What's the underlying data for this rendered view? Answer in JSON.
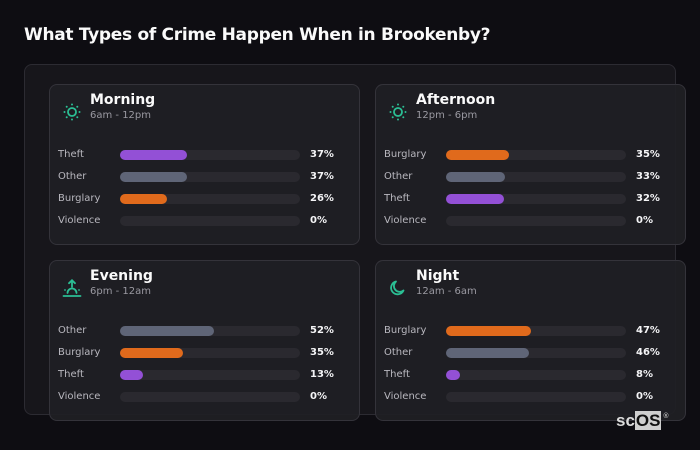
{
  "title": "What Types of Crime Happen When in Brookenby?",
  "colors": {
    "theft": "#9350d6",
    "other": "#5f6577",
    "burglary": "#e06a1c",
    "violence": "#c0392b",
    "accent_icon": "#2bbf94"
  },
  "cards": [
    {
      "name": "Morning",
      "range": "6am - 12pm",
      "icon": "sun-icon",
      "rows": [
        {
          "label": "Theft",
          "value": 37,
          "pct": "37%",
          "type": "theft"
        },
        {
          "label": "Other",
          "value": 37,
          "pct": "37%",
          "type": "other"
        },
        {
          "label": "Burglary",
          "value": 26,
          "pct": "26%",
          "type": "burglary"
        },
        {
          "label": "Violence",
          "value": 0,
          "pct": "0%",
          "type": "violence"
        }
      ]
    },
    {
      "name": "Afternoon",
      "range": "12pm - 6pm",
      "icon": "sun-icon",
      "rows": [
        {
          "label": "Burglary",
          "value": 35,
          "pct": "35%",
          "type": "burglary"
        },
        {
          "label": "Other",
          "value": 33,
          "pct": "33%",
          "type": "other"
        },
        {
          "label": "Theft",
          "value": 32,
          "pct": "32%",
          "type": "theft"
        },
        {
          "label": "Violence",
          "value": 0,
          "pct": "0%",
          "type": "violence"
        }
      ]
    },
    {
      "name": "Evening",
      "range": "6pm - 12am",
      "icon": "sunset-icon",
      "rows": [
        {
          "label": "Other",
          "value": 52,
          "pct": "52%",
          "type": "other"
        },
        {
          "label": "Burglary",
          "value": 35,
          "pct": "35%",
          "type": "burglary"
        },
        {
          "label": "Theft",
          "value": 13,
          "pct": "13%",
          "type": "theft"
        },
        {
          "label": "Violence",
          "value": 0,
          "pct": "0%",
          "type": "violence"
        }
      ]
    },
    {
      "name": "Night",
      "range": "12am - 6am",
      "icon": "moon-icon",
      "rows": [
        {
          "label": "Burglary",
          "value": 47,
          "pct": "47%",
          "type": "burglary"
        },
        {
          "label": "Other",
          "value": 46,
          "pct": "46%",
          "type": "other"
        },
        {
          "label": "Theft",
          "value": 8,
          "pct": "8%",
          "type": "theft"
        },
        {
          "label": "Violence",
          "value": 0,
          "pct": "0%",
          "type": "violence"
        }
      ]
    }
  ],
  "logo": {
    "sc": "sc",
    "os": "OS",
    "reg": "®"
  }
}
